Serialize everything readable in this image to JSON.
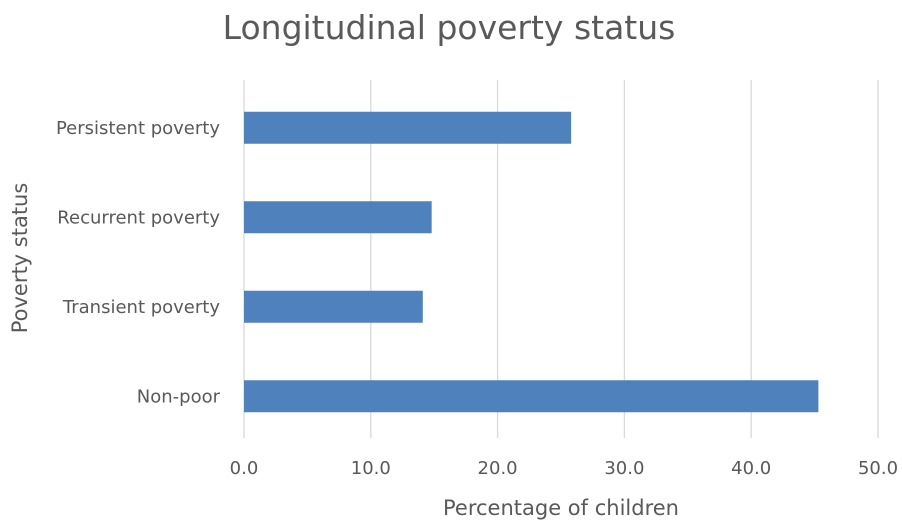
{
  "chart_data": {
    "type": "bar",
    "orientation": "horizontal",
    "title": "Longitudinal poverty status",
    "xlabel": "Percentage of children",
    "ylabel": "Poverty status",
    "categories": [
      "Persistent poverty",
      "Recurrent poverty",
      "Transient poverty",
      "Non-poor"
    ],
    "values": [
      25.8,
      14.8,
      14.1,
      45.3
    ],
    "xlim": [
      0,
      50
    ],
    "xticks": [
      "0.0",
      "10.0",
      "20.0",
      "30.0",
      "40.0",
      "50.0"
    ],
    "grid": "vertical",
    "legend": "none",
    "bar_color": "#4f81bd"
  }
}
